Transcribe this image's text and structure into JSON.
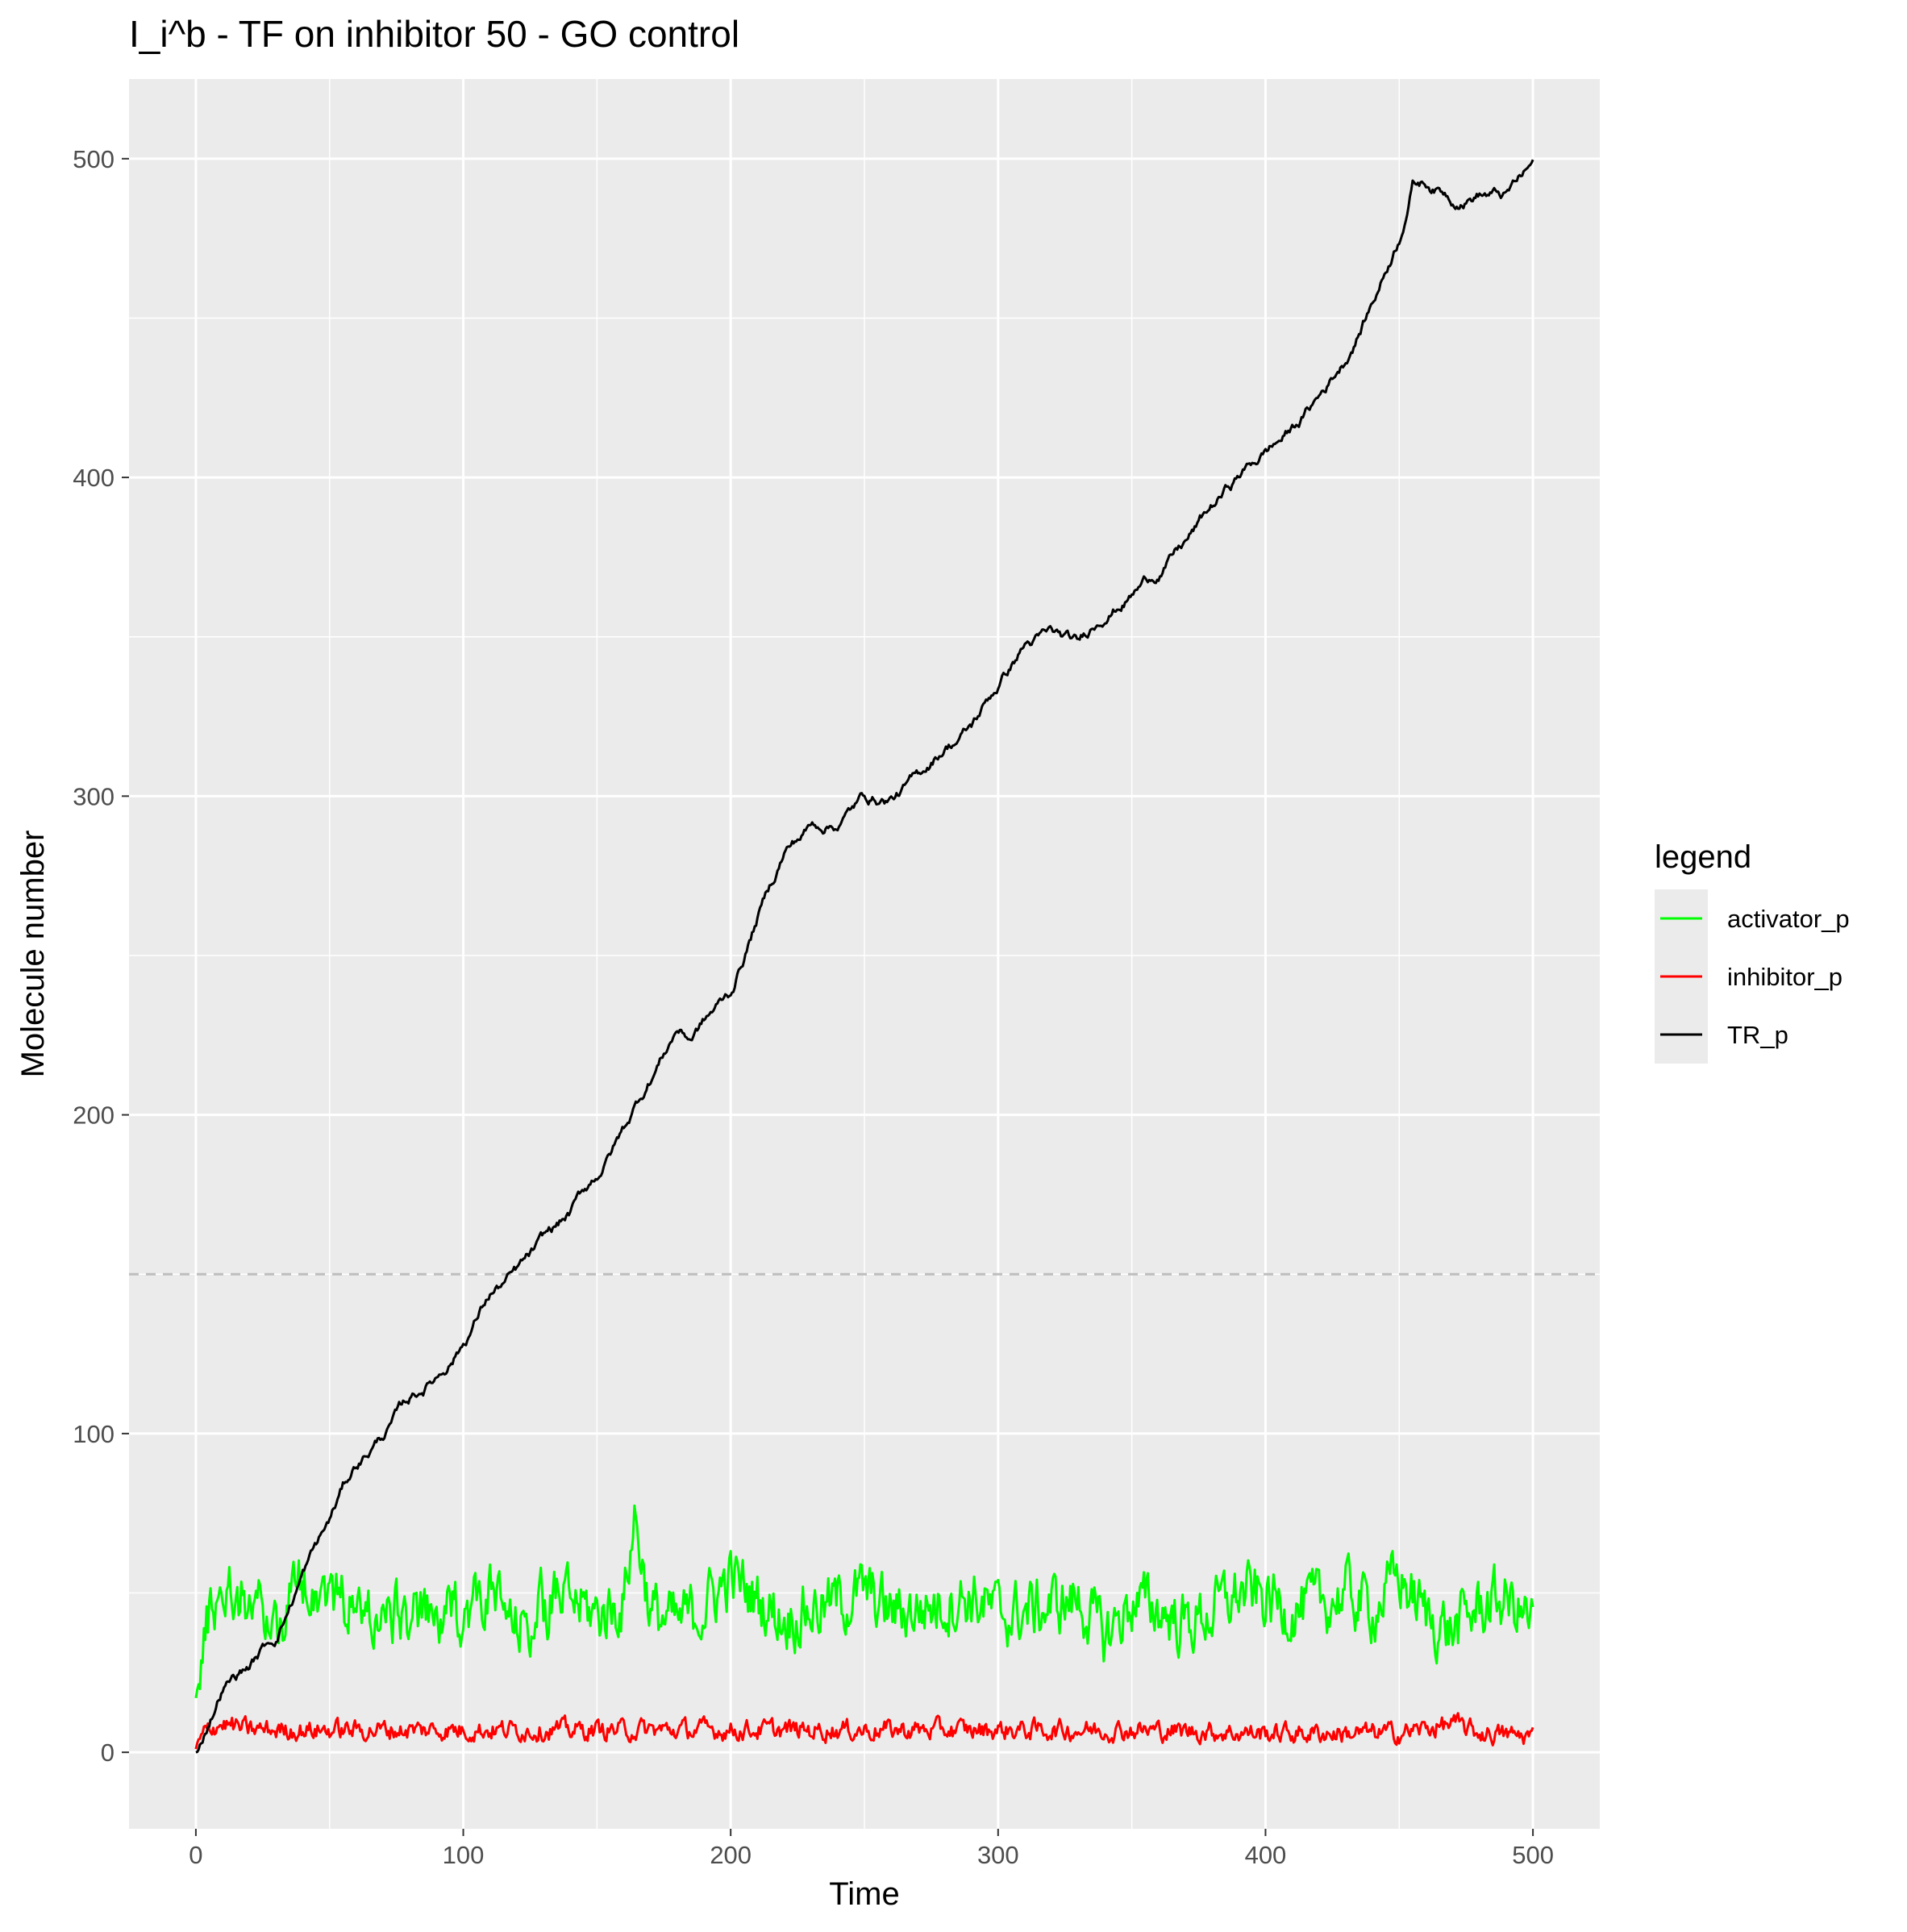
{
  "chart_data": {
    "type": "line",
    "title": "I_i^b - TF on inhibitor 50 - GO control",
    "xlabel": "Time",
    "ylabel": "Molecule number",
    "xlim": [
      -25,
      525
    ],
    "ylim": [
      -24,
      525
    ],
    "x_ticks": [
      0,
      100,
      200,
      300,
      400,
      500
    ],
    "y_ticks": [
      0,
      100,
      200,
      300,
      400,
      500
    ],
    "grid": true,
    "reference_line": {
      "y": 150,
      "style": "dashed",
      "color": "#bebebe"
    },
    "legend": {
      "title": "legend",
      "position": "right",
      "entries": [
        "activator_p",
        "inhibitor_p",
        "TR_p"
      ]
    },
    "series": [
      {
        "name": "activator_p",
        "color": "#00ff00",
        "noise": 10,
        "x": [
          0,
          5,
          10,
          20,
          30,
          40,
          50,
          60,
          70,
          80,
          90,
          100,
          110,
          120,
          130,
          140,
          150,
          160,
          164,
          170,
          180,
          190,
          200,
          210,
          220,
          230,
          240,
          250,
          260,
          270,
          280,
          290,
          300,
          310,
          320,
          330,
          340,
          350,
          360,
          370,
          380,
          390,
          400,
          410,
          420,
          430,
          440,
          450,
          460,
          470,
          480,
          490,
          500
        ],
        "y": [
          17,
          44,
          52,
          48,
          40,
          55,
          50,
          45,
          42,
          44,
          40,
          45,
          50,
          38,
          46,
          48,
          43,
          47,
          75,
          44,
          40,
          46,
          55,
          48,
          42,
          45,
          47,
          50,
          44,
          45,
          47,
          49,
          43,
          44,
          46,
          48,
          36,
          47,
          45,
          40,
          44,
          50,
          48,
          45,
          46,
          50,
          45,
          55,
          43,
          38,
          46,
          48,
          40
        ]
      },
      {
        "name": "inhibitor_p",
        "color": "#ff0000",
        "noise": 3.2,
        "x": [
          0,
          5,
          10,
          20,
          50,
          100,
          150,
          200,
          250,
          300,
          350,
          400,
          450,
          470,
          480,
          500
        ],
        "y": [
          1,
          8,
          9,
          7,
          7,
          7,
          7,
          7,
          7,
          7,
          7,
          6,
          6,
          9,
          6,
          5
        ]
      },
      {
        "name": "TR_p",
        "color": "#000000",
        "noise": 2.2,
        "x": [
          0,
          10,
          20,
          30,
          40,
          50,
          55,
          60,
          70,
          80,
          90,
          100,
          110,
          120,
          130,
          140,
          150,
          160,
          170,
          180,
          185,
          190,
          200,
          210,
          220,
          230,
          240,
          250,
          260,
          270,
          280,
          290,
          300,
          310,
          320,
          330,
          340,
          350,
          360,
          370,
          380,
          390,
          400,
          410,
          420,
          430,
          440,
          450,
          455,
          460,
          470,
          480,
          490,
          500
        ],
        "y": [
          0,
          22,
          28,
          37,
          57,
          72,
          82,
          90,
          100,
          110,
          118,
          130,
          145,
          150,
          158,
          167,
          180,
          195,
          212,
          228,
          225,
          230,
          238,
          262,
          283,
          291,
          293,
          300,
          300,
          305,
          316,
          322,
          335,
          348,
          350,
          345,
          358,
          365,
          372,
          380,
          390,
          400,
          408,
          415,
          425,
          438,
          456,
          477,
          495,
          495,
          490,
          492,
          489,
          498
        ]
      }
    ]
  }
}
